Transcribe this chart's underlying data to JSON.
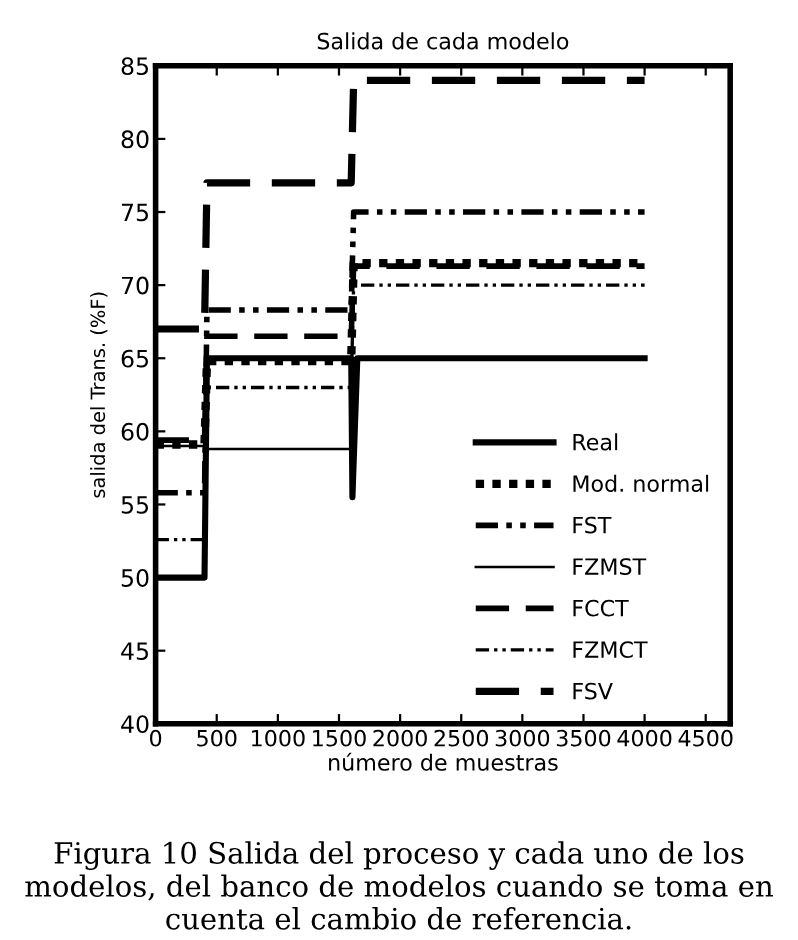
{
  "chart_data": {
    "type": "line",
    "title": "Salida de cada modelo",
    "xlabel": "número de muestras",
    "ylabel": "salida del Trans. (%F)",
    "xlim": [
      0,
      4700
    ],
    "xticks": [
      0,
      500,
      1000,
      1500,
      2000,
      2500,
      3000,
      3500,
      4000,
      4500
    ],
    "ylim": [
      40,
      85
    ],
    "yticks": [
      40,
      45,
      50,
      55,
      60,
      65,
      70,
      75,
      80,
      85
    ],
    "grid": false,
    "legend": "bottom right",
    "marker": "none",
    "series": [
      {
        "name": "Real",
        "color": "#000000",
        "line_style": "solid",
        "x": [
          0,
          400,
          420,
          1600,
          1610,
          1650,
          4000
        ],
        "values": [
          50,
          50,
          65,
          65,
          55.5,
          65,
          65
        ]
      },
      {
        "name": "Mod. normal",
        "color": "#000000",
        "line_style": "dotted",
        "x": [
          0,
          400,
          420,
          1600,
          1620,
          4000
        ],
        "values": [
          59.1,
          59.1,
          64.8,
          64.8,
          71.5,
          71.5
        ]
      },
      {
        "name": "FST",
        "color": "#000000",
        "line_style": "dashdot",
        "x": [
          0,
          400,
          420,
          1600,
          1620,
          4000
        ],
        "values": [
          55.8,
          55.8,
          68.3,
          68.3,
          75,
          75
        ]
      },
      {
        "name": "FZMST",
        "color": "#000000",
        "line_style": "solid",
        "x": [
          0,
          400,
          420,
          1600,
          1620,
          4000
        ],
        "values": [
          59,
          59,
          58.8,
          58.8,
          65,
          65
        ]
      },
      {
        "name": "FCCT",
        "color": "#000000",
        "line_style": "dashed",
        "x": [
          0,
          400,
          420,
          1600,
          1620,
          4000
        ],
        "values": [
          59.4,
          59.4,
          66.5,
          66.5,
          71.3,
          71.3
        ]
      },
      {
        "name": "FZMCT",
        "color": "#000000",
        "line_style": "dashdot",
        "x": [
          0,
          400,
          420,
          1600,
          1620,
          4000
        ],
        "values": [
          52.6,
          52.6,
          63,
          63,
          70,
          70
        ]
      },
      {
        "name": "FSV",
        "color": "#000000",
        "line_style": "dashed",
        "x": [
          0,
          400,
          420,
          1600,
          1620,
          4000
        ],
        "values": [
          67,
          67,
          77,
          77,
          84,
          84
        ]
      }
    ],
    "annotations": [
      "Figura 10 Salida del proceso y cada uno de los modelos, del banco de modelos cuando se toma en cuenta el cambio de referencia."
    ]
  }
}
